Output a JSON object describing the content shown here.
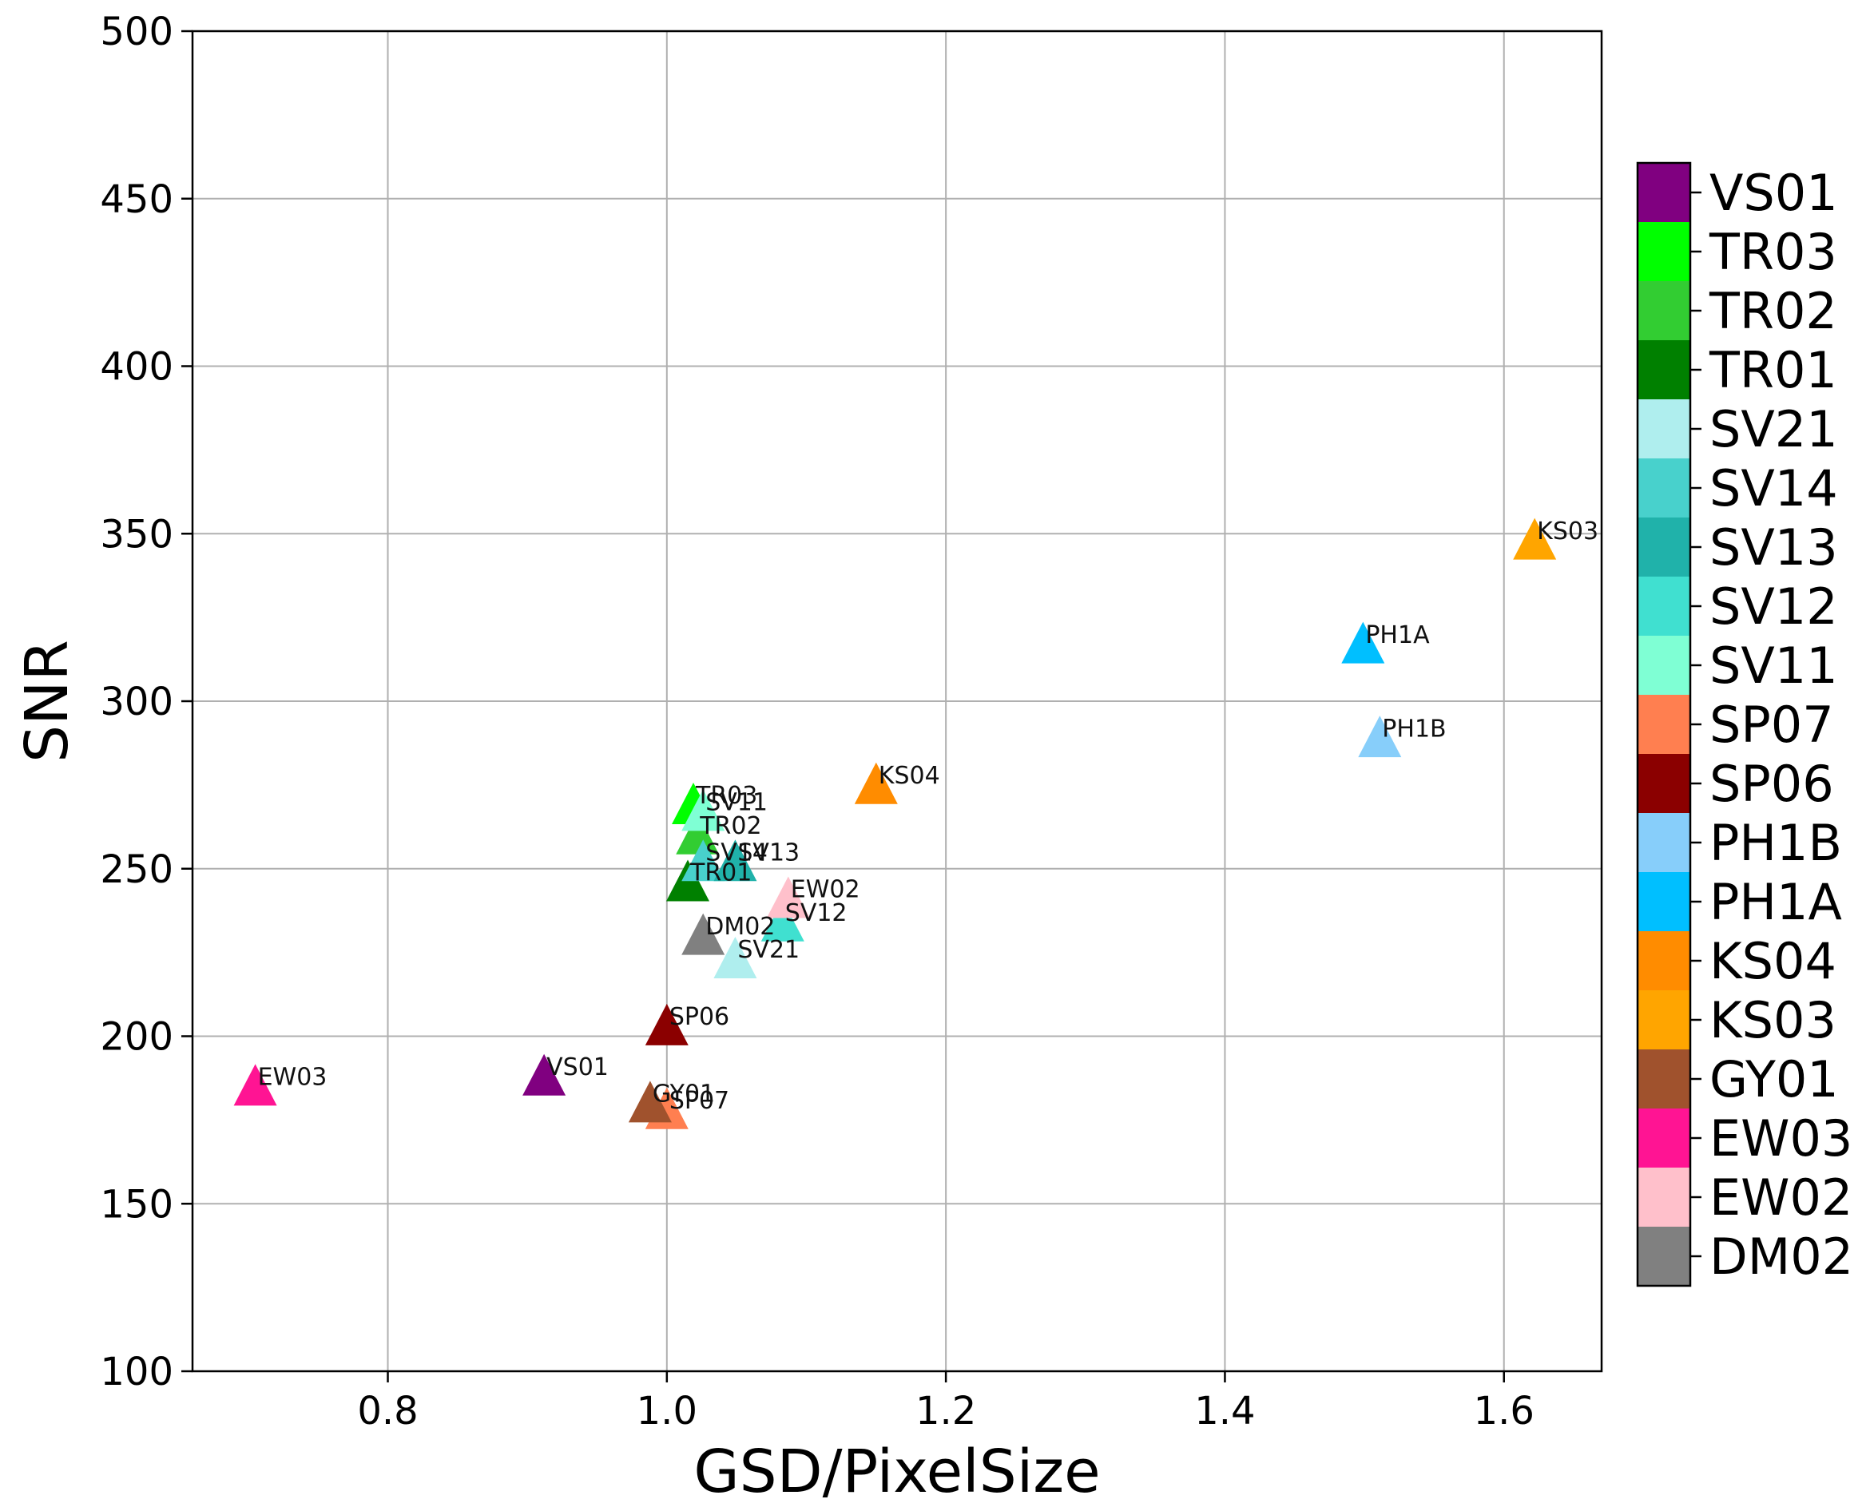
{
  "chart_data": {
    "type": "scatter",
    "xlabel": "GSD/PixelSize",
    "ylabel": "SNR",
    "xlim": [
      0.66,
      1.67
    ],
    "ylim": [
      100,
      500
    ],
    "xticks": [
      0.8,
      1.0,
      1.2,
      1.4,
      1.6
    ],
    "xtick_labels": [
      "0.8",
      "1.0",
      "1.2",
      "1.4",
      "1.6"
    ],
    "yticks": [
      100,
      150,
      200,
      250,
      300,
      350,
      400,
      450,
      500
    ],
    "ytick_labels": [
      "100",
      "150",
      "200",
      "250",
      "300",
      "350",
      "400",
      "450",
      "500"
    ],
    "grid": true,
    "marker": "triangle",
    "legend_position": "right",
    "points": [
      {
        "label": "VS01",
        "x": 0.912,
        "y": 187,
        "color": "#800080"
      },
      {
        "label": "TR03",
        "x": 1.019,
        "y": 268,
        "color": "#00FF00"
      },
      {
        "label": "TR02",
        "x": 1.022,
        "y": 259,
        "color": "#32CD32"
      },
      {
        "label": "TR01",
        "x": 1.015,
        "y": 245,
        "color": "#008000"
      },
      {
        "label": "SV21",
        "x": 1.049,
        "y": 222,
        "color": "#AFEEEE"
      },
      {
        "label": "SV14",
        "x": 1.026,
        "y": 251,
        "color": "#48D1CC"
      },
      {
        "label": "SV13",
        "x": 1.049,
        "y": 251,
        "color": "#20B2AA"
      },
      {
        "label": "SV12",
        "x": 1.083,
        "y": 233,
        "color": "#40E0D0"
      },
      {
        "label": "SV11",
        "x": 1.026,
        "y": 266,
        "color": "#7FFFD4"
      },
      {
        "label": "SP07",
        "x": 1.0,
        "y": 177,
        "color": "#FF7F50"
      },
      {
        "label": "SP06",
        "x": 1.0,
        "y": 202,
        "color": "#8B0000"
      },
      {
        "label": "PH1B",
        "x": 1.511,
        "y": 288,
        "color": "#87CEFA"
      },
      {
        "label": "PH1A",
        "x": 1.499,
        "y": 316,
        "color": "#00BFFF"
      },
      {
        "label": "KS04",
        "x": 1.15,
        "y": 274,
        "color": "#FF8C00"
      },
      {
        "label": "KS03",
        "x": 1.622,
        "y": 347,
        "color": "#FFA500"
      },
      {
        "label": "GY01",
        "x": 0.988,
        "y": 179,
        "color": "#A0522D"
      },
      {
        "label": "EW03",
        "x": 0.705,
        "y": 184,
        "color": "#FF1493"
      },
      {
        "label": "EW02",
        "x": 1.087,
        "y": 240,
        "color": "#FFC0CB"
      },
      {
        "label": "DM02",
        "x": 1.026,
        "y": 229,
        "color": "#808080"
      }
    ],
    "legend": [
      {
        "label": "VS01",
        "color": "#800080"
      },
      {
        "label": "TR03",
        "color": "#00FF00"
      },
      {
        "label": "TR02",
        "color": "#32CD32"
      },
      {
        "label": "TR01",
        "color": "#008000"
      },
      {
        "label": "SV21",
        "color": "#AFEEEE"
      },
      {
        "label": "SV14",
        "color": "#48D1CC"
      },
      {
        "label": "SV13",
        "color": "#20B2AA"
      },
      {
        "label": "SV12",
        "color": "#40E0D0"
      },
      {
        "label": "SV11",
        "color": "#7FFFD4"
      },
      {
        "label": "SP07",
        "color": "#FF7F50"
      },
      {
        "label": "SP06",
        "color": "#8B0000"
      },
      {
        "label": "PH1B",
        "color": "#87CEFA"
      },
      {
        "label": "PH1A",
        "color": "#00BFFF"
      },
      {
        "label": "KS04",
        "color": "#FF8C00"
      },
      {
        "label": "KS03",
        "color": "#FFA500"
      },
      {
        "label": "GY01",
        "color": "#A0522D"
      },
      {
        "label": "EW03",
        "color": "#FF1493"
      },
      {
        "label": "EW02",
        "color": "#FFC0CB"
      },
      {
        "label": "DM02",
        "color": "#808080"
      }
    ]
  }
}
